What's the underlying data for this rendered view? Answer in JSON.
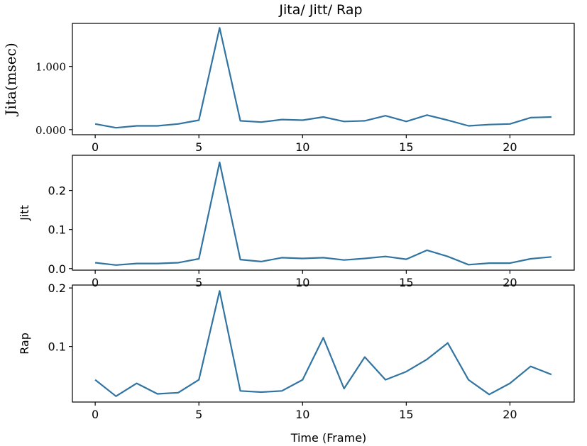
{
  "title": "Jita/ Jitt/ Rap",
  "colors": {
    "line": "#3274a1",
    "axes": "#000000"
  },
  "chart_data": [
    {
      "type": "line",
      "ylabel": "Jita(msec)",
      "xlim": [
        -1.1,
        23.1
      ],
      "ylim": [
        -0.08,
        1.68
      ],
      "xticks": [
        0,
        5,
        10,
        15,
        20
      ],
      "yticks": [
        0,
        1
      ],
      "ytick_labels": [
        "0.000",
        "1.000"
      ],
      "x": [
        0,
        1,
        2,
        3,
        4,
        5,
        6,
        7,
        8,
        9,
        10,
        11,
        12,
        13,
        14,
        15,
        16,
        17,
        18,
        19,
        20,
        21,
        22
      ],
      "values": [
        0.09,
        0.03,
        0.06,
        0.06,
        0.09,
        0.15,
        1.61,
        0.14,
        0.12,
        0.16,
        0.15,
        0.2,
        0.13,
        0.14,
        0.22,
        0.13,
        0.23,
        0.15,
        0.06,
        0.08,
        0.09,
        0.19,
        0.2
      ]
    },
    {
      "type": "line",
      "ylabel": "Jitt",
      "xlim": [
        -1.1,
        23.1
      ],
      "ylim": [
        -0.004,
        0.29
      ],
      "xticks": [
        0,
        5,
        10,
        15,
        20
      ],
      "yticks": [
        0.0,
        0.1,
        0.2
      ],
      "ytick_labels": [
        "0.0",
        "0.1",
        "0.2"
      ],
      "x": [
        0,
        1,
        2,
        3,
        4,
        5,
        6,
        7,
        8,
        9,
        10,
        11,
        12,
        13,
        14,
        15,
        16,
        17,
        18,
        19,
        20,
        21,
        22
      ],
      "values": [
        0.015,
        0.009,
        0.013,
        0.013,
        0.015,
        0.025,
        0.272,
        0.023,
        0.018,
        0.028,
        0.026,
        0.028,
        0.022,
        0.026,
        0.031,
        0.024,
        0.047,
        0.031,
        0.01,
        0.014,
        0.014,
        0.025,
        0.03
      ]
    },
    {
      "type": "line",
      "ylabel": "Rap",
      "xlabel": "Time (Frame)",
      "xlim": [
        -1.1,
        23.1
      ],
      "ylim": [
        0.005,
        0.205
      ],
      "xticks": [
        0,
        5,
        10,
        15,
        20
      ],
      "yticks": [
        0.1,
        0.2
      ],
      "ytick_labels": [
        "0.1",
        "0.2"
      ],
      "x": [
        0,
        1,
        2,
        3,
        4,
        5,
        6,
        7,
        8,
        9,
        10,
        11,
        12,
        13,
        14,
        15,
        16,
        17,
        18,
        19,
        20,
        21,
        22
      ],
      "values": [
        0.043,
        0.015,
        0.037,
        0.019,
        0.021,
        0.043,
        0.195,
        0.024,
        0.022,
        0.024,
        0.043,
        0.115,
        0.028,
        0.082,
        0.043,
        0.057,
        0.078,
        0.106,
        0.043,
        0.018,
        0.037,
        0.066,
        0.052
      ]
    }
  ]
}
